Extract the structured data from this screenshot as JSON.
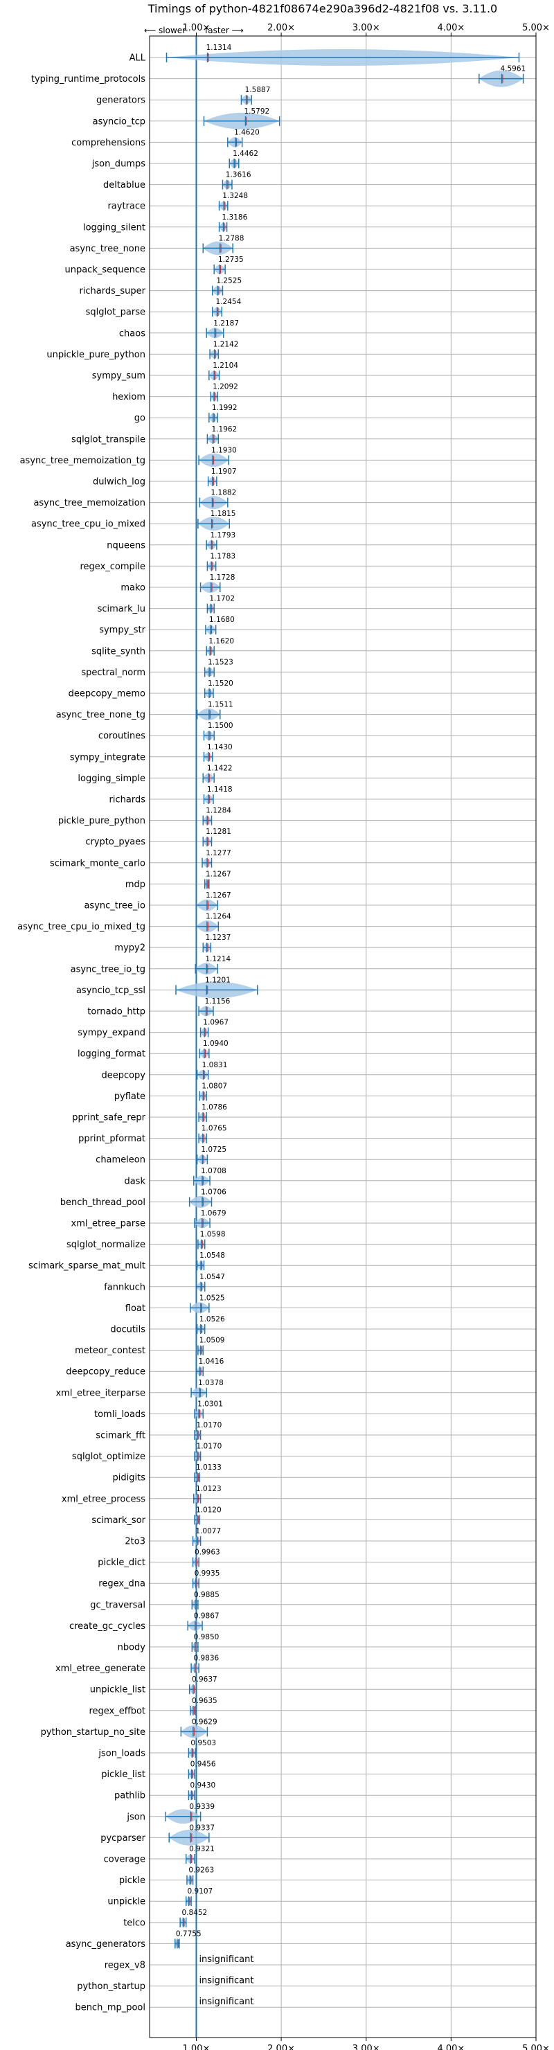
{
  "chart_data": {
    "type": "violin",
    "title": "Timings of python-4821f08674e290a396d2-4821f08 vs. 3.11.0",
    "direction_left": "⟵ slower",
    "direction_right": "faster ⟶",
    "xlim": [
      0.45,
      5.0
    ],
    "xticks": [
      1.0,
      2.0,
      3.0,
      4.0,
      5.0
    ],
    "xtick_labels": [
      "1.00×",
      "2.00×",
      "3.00×",
      "4.00×",
      "5.00×"
    ],
    "reference_line": 1.0,
    "grid": true,
    "colors": {
      "violin_fill": "#a8c9e6",
      "violin_line": "#1f77b4",
      "median": "#d62728",
      "reference": "#1f77b4"
    },
    "insignificant_text": "insignificant",
    "benchmarks": [
      {
        "name": "ALL",
        "value": 1.1314,
        "low": 0.65,
        "high": 4.8
      },
      {
        "name": "typing_runtime_protocols",
        "value": 4.5961,
        "low": 4.33,
        "high": 4.85
      },
      {
        "name": "generators",
        "value": 1.5887,
        "low": 1.53,
        "high": 1.65
      },
      {
        "name": "asyncio_tcp",
        "value": 1.5792,
        "low": 1.09,
        "high": 1.98
      },
      {
        "name": "comprehensions",
        "value": 1.462,
        "low": 1.37,
        "high": 1.54
      },
      {
        "name": "json_dumps",
        "value": 1.4462,
        "low": 1.39,
        "high": 1.5
      },
      {
        "name": "deltablue",
        "value": 1.3616,
        "low": 1.31,
        "high": 1.42
      },
      {
        "name": "raytrace",
        "value": 1.3248,
        "low": 1.27,
        "high": 1.37
      },
      {
        "name": "logging_silent",
        "value": 1.3186,
        "low": 1.27,
        "high": 1.36
      },
      {
        "name": "async_tree_none",
        "value": 1.2788,
        "low": 1.08,
        "high": 1.43
      },
      {
        "name": "unpack_sequence",
        "value": 1.2735,
        "low": 1.21,
        "high": 1.34
      },
      {
        "name": "richards_super",
        "value": 1.2525,
        "low": 1.19,
        "high": 1.31
      },
      {
        "name": "sqlglot_parse",
        "value": 1.2454,
        "low": 1.19,
        "high": 1.3
      },
      {
        "name": "chaos",
        "value": 1.2187,
        "low": 1.12,
        "high": 1.32
      },
      {
        "name": "unpickle_pure_python",
        "value": 1.2142,
        "low": 1.16,
        "high": 1.26
      },
      {
        "name": "sympy_sum",
        "value": 1.2104,
        "low": 1.15,
        "high": 1.27
      },
      {
        "name": "hexiom",
        "value": 1.2092,
        "low": 1.17,
        "high": 1.25
      },
      {
        "name": "go",
        "value": 1.1992,
        "low": 1.15,
        "high": 1.25
      },
      {
        "name": "sqlglot_transpile",
        "value": 1.1962,
        "low": 1.13,
        "high": 1.26
      },
      {
        "name": "async_tree_memoization_tg",
        "value": 1.193,
        "low": 1.03,
        "high": 1.38
      },
      {
        "name": "dulwich_log",
        "value": 1.1907,
        "low": 1.14,
        "high": 1.24
      },
      {
        "name": "async_tree_memoization",
        "value": 1.1882,
        "low": 1.04,
        "high": 1.37
      },
      {
        "name": "async_tree_cpu_io_mixed",
        "value": 1.1815,
        "low": 1.02,
        "high": 1.39
      },
      {
        "name": "nqueens",
        "value": 1.1793,
        "low": 1.12,
        "high": 1.24
      },
      {
        "name": "regex_compile",
        "value": 1.1783,
        "low": 1.13,
        "high": 1.23
      },
      {
        "name": "mako",
        "value": 1.1728,
        "low": 1.05,
        "high": 1.28
      },
      {
        "name": "scimark_lu",
        "value": 1.1702,
        "low": 1.13,
        "high": 1.21
      },
      {
        "name": "sympy_str",
        "value": 1.168,
        "low": 1.11,
        "high": 1.23
      },
      {
        "name": "sqlite_synth",
        "value": 1.162,
        "low": 1.12,
        "high": 1.21
      },
      {
        "name": "spectral_norm",
        "value": 1.1523,
        "low": 1.1,
        "high": 1.21
      },
      {
        "name": "deepcopy_memo",
        "value": 1.152,
        "low": 1.1,
        "high": 1.2
      },
      {
        "name": "async_tree_none_tg",
        "value": 1.1511,
        "low": 1.01,
        "high": 1.28
      },
      {
        "name": "coroutines",
        "value": 1.15,
        "low": 1.09,
        "high": 1.21
      },
      {
        "name": "sympy_integrate",
        "value": 1.143,
        "low": 1.09,
        "high": 1.19
      },
      {
        "name": "logging_simple",
        "value": 1.1422,
        "low": 1.08,
        "high": 1.21
      },
      {
        "name": "richards",
        "value": 1.1418,
        "low": 1.09,
        "high": 1.2
      },
      {
        "name": "pickle_pure_python",
        "value": 1.1284,
        "low": 1.08,
        "high": 1.18
      },
      {
        "name": "crypto_pyaes",
        "value": 1.1281,
        "low": 1.08,
        "high": 1.18
      },
      {
        "name": "scimark_monte_carlo",
        "value": 1.1277,
        "low": 1.07,
        "high": 1.18
      },
      {
        "name": "mdp",
        "value": 1.1267,
        "low": 1.1,
        "high": 1.15
      },
      {
        "name": "async_tree_io",
        "value": 1.1267,
        "low": 1.0,
        "high": 1.25
      },
      {
        "name": "async_tree_cpu_io_mixed_tg",
        "value": 1.1264,
        "low": 1.0,
        "high": 1.26
      },
      {
        "name": "mypy2",
        "value": 1.1237,
        "low": 1.08,
        "high": 1.17
      },
      {
        "name": "async_tree_io_tg",
        "value": 1.1214,
        "low": 0.99,
        "high": 1.25
      },
      {
        "name": "asyncio_tcp_ssl",
        "value": 1.1201,
        "low": 0.76,
        "high": 1.72
      },
      {
        "name": "tornado_http",
        "value": 1.1156,
        "low": 1.03,
        "high": 1.2
      },
      {
        "name": "sympy_expand",
        "value": 1.0967,
        "low": 1.05,
        "high": 1.14
      },
      {
        "name": "logging_format",
        "value": 1.094,
        "low": 1.04,
        "high": 1.15
      },
      {
        "name": "deepcopy",
        "value": 1.0831,
        "low": 1.01,
        "high": 1.14
      },
      {
        "name": "pyflate",
        "value": 1.0807,
        "low": 1.04,
        "high": 1.12
      },
      {
        "name": "pprint_safe_repr",
        "value": 1.0786,
        "low": 1.03,
        "high": 1.12
      },
      {
        "name": "pprint_pformat",
        "value": 1.0765,
        "low": 1.03,
        "high": 1.12
      },
      {
        "name": "chameleon",
        "value": 1.0725,
        "low": 1.01,
        "high": 1.13
      },
      {
        "name": "dask",
        "value": 1.0708,
        "low": 0.97,
        "high": 1.16
      },
      {
        "name": "bench_thread_pool",
        "value": 1.0706,
        "low": 0.92,
        "high": 1.18
      },
      {
        "name": "xml_etree_parse",
        "value": 1.0679,
        "low": 0.98,
        "high": 1.16
      },
      {
        "name": "sqlglot_normalize",
        "value": 1.0598,
        "low": 1.02,
        "high": 1.1
      },
      {
        "name": "scimark_sparse_mat_mult",
        "value": 1.0548,
        "low": 1.01,
        "high": 1.09
      },
      {
        "name": "fannkuch",
        "value": 1.0547,
        "low": 1.0,
        "high": 1.1
      },
      {
        "name": "float",
        "value": 1.0525,
        "low": 0.93,
        "high": 1.15
      },
      {
        "name": "docutils",
        "value": 1.0526,
        "low": 1.01,
        "high": 1.1
      },
      {
        "name": "meteor_contest",
        "value": 1.0509,
        "low": 1.02,
        "high": 1.08
      },
      {
        "name": "deepcopy_reduce",
        "value": 1.0416,
        "low": 1.0,
        "high": 1.08
      },
      {
        "name": "xml_etree_iterparse",
        "value": 1.0378,
        "low": 0.94,
        "high": 1.12
      },
      {
        "name": "tomli_loads",
        "value": 1.0301,
        "low": 0.98,
        "high": 1.08
      },
      {
        "name": "scimark_fft",
        "value": 1.017,
        "low": 0.98,
        "high": 1.05
      },
      {
        "name": "sqlglot_optimize",
        "value": 1.017,
        "low": 0.98,
        "high": 1.05
      },
      {
        "name": "pidigits",
        "value": 1.0133,
        "low": 0.98,
        "high": 1.04
      },
      {
        "name": "xml_etree_process",
        "value": 1.0123,
        "low": 0.97,
        "high": 1.05
      },
      {
        "name": "scimark_sor",
        "value": 1.012,
        "low": 0.98,
        "high": 1.04
      },
      {
        "name": "2to3",
        "value": 1.0077,
        "low": 0.96,
        "high": 1.05
      },
      {
        "name": "pickle_dict",
        "value": 0.9963,
        "low": 0.96,
        "high": 1.03
      },
      {
        "name": "regex_dna",
        "value": 0.9935,
        "low": 0.96,
        "high": 1.03
      },
      {
        "name": "gc_traversal",
        "value": 0.9885,
        "low": 0.95,
        "high": 1.02
      },
      {
        "name": "create_gc_cycles",
        "value": 0.9867,
        "low": 0.9,
        "high": 1.07
      },
      {
        "name": "nbody",
        "value": 0.985,
        "low": 0.95,
        "high": 1.02
      },
      {
        "name": "xml_etree_generate",
        "value": 0.9836,
        "low": 0.94,
        "high": 1.03
      },
      {
        "name": "unpickle_list",
        "value": 0.9637,
        "low": 0.92,
        "high": 1.0
      },
      {
        "name": "regex_effbot",
        "value": 0.9635,
        "low": 0.93,
        "high": 0.99
      },
      {
        "name": "python_startup_no_site",
        "value": 0.9629,
        "low": 0.82,
        "high": 1.13
      },
      {
        "name": "json_loads",
        "value": 0.9503,
        "low": 0.91,
        "high": 0.99
      },
      {
        "name": "pickle_list",
        "value": 0.9456,
        "low": 0.91,
        "high": 0.98
      },
      {
        "name": "pathlib",
        "value": 0.943,
        "low": 0.91,
        "high": 0.98
      },
      {
        "name": "json",
        "value": 0.9339,
        "low": 0.64,
        "high": 1.05
      },
      {
        "name": "pycparser",
        "value": 0.9337,
        "low": 0.68,
        "high": 1.15
      },
      {
        "name": "coverage",
        "value": 0.9321,
        "low": 0.88,
        "high": 0.98
      },
      {
        "name": "pickle",
        "value": 0.9263,
        "low": 0.89,
        "high": 0.96
      },
      {
        "name": "unpickle",
        "value": 0.9107,
        "low": 0.88,
        "high": 0.94
      },
      {
        "name": "telco",
        "value": 0.8452,
        "low": 0.81,
        "high": 0.88
      },
      {
        "name": "async_generators",
        "value": 0.7755,
        "low": 0.75,
        "high": 0.8
      },
      {
        "name": "regex_v8",
        "insignificant": true
      },
      {
        "name": "python_startup",
        "insignificant": true
      },
      {
        "name": "bench_mp_pool",
        "insignificant": true
      }
    ]
  }
}
